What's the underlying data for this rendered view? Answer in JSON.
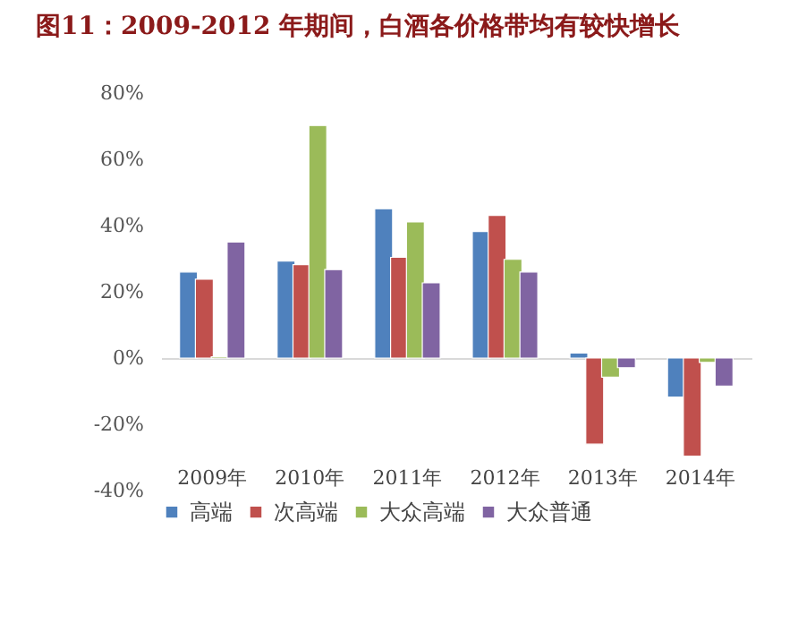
{
  "chart_data": {
    "type": "bar",
    "title": "图11：2009-2012 年期间，白酒各价格带均有较快增长",
    "categories": [
      "2009年",
      "2010年",
      "2011年",
      "2012年",
      "2013年",
      "2014年"
    ],
    "series": [
      {
        "name": "高端",
        "color": "#4f81bd",
        "values": [
          26,
          29.3,
          45.1,
          38.2,
          1.5,
          -11.8
        ]
      },
      {
        "name": "次高端",
        "color": "#c0504d",
        "values": [
          23.8,
          28.2,
          30.4,
          43.1,
          -26,
          -29.6
        ]
      },
      {
        "name": "大众高端",
        "color": "#9bbb59",
        "values": [
          0.4,
          70.2,
          41.1,
          29.8,
          -5.8,
          -1.3
        ]
      },
      {
        "name": "大众普通",
        "color": "#8064a2",
        "values": [
          35,
          26.7,
          22.7,
          26,
          -2.9,
          -8.5
        ]
      }
    ],
    "ylim": [
      -40,
      80
    ],
    "yticks": [
      {
        "value": -40,
        "label": "-40%"
      },
      {
        "value": -20,
        "label": "-20%"
      },
      {
        "value": 0,
        "label": "0%"
      },
      {
        "value": 20,
        "label": "20%"
      },
      {
        "value": 40,
        "label": "40%"
      },
      {
        "value": 60,
        "label": "60%"
      },
      {
        "value": 80,
        "label": "80%"
      }
    ],
    "legend": "bottom"
  }
}
